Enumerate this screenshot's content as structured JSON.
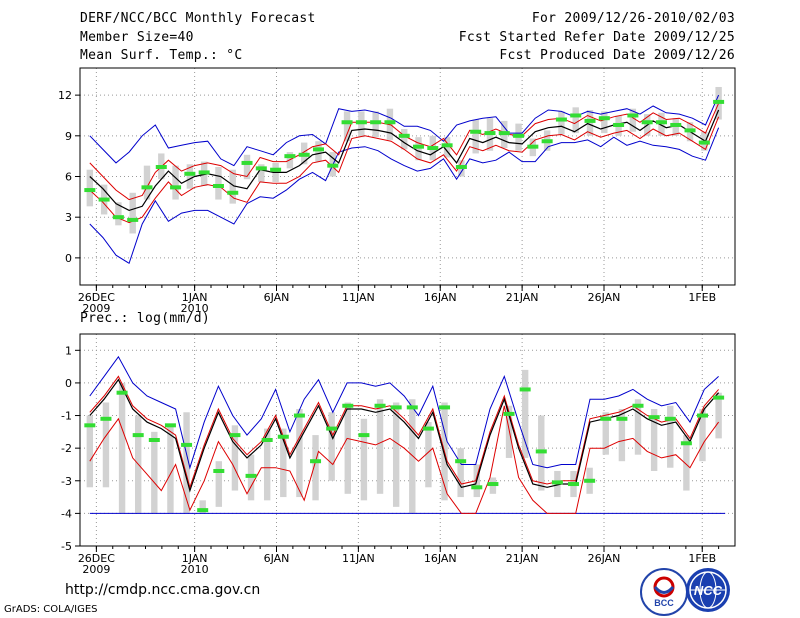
{
  "header": {
    "title": "DERF/NCC/BCC Monthly Forecast",
    "member_size": "Member Size=40",
    "variable": "Mean Surf. Temp.: °C",
    "period": "For 2009/12/26-2010/02/03",
    "fcst_started": "Fcst Started Refer Date 2009/12/25",
    "fcst_produced": "Fcst Produced Date 2009/12/26"
  },
  "footer": {
    "url": "http://cmdp.ncc.cma.gov.cn",
    "credit": "GrADS: COLA/IGES",
    "logo_bcc": "BCC",
    "logo_ncc": "NCC"
  },
  "colors": {
    "ensemble_mean": "#000000",
    "uncertainty_inner": "#dd0000",
    "uncertainty_outer": "#0000cc",
    "member_box": "#d2d2d2",
    "observation": "#33dd33",
    "grid": "#999999"
  },
  "chart_data": [
    {
      "type": "line",
      "title": "Mean Surf. Temp.: °C",
      "ylim": [
        -2,
        14
      ],
      "yticks": [
        0,
        3,
        6,
        9,
        12
      ],
      "xlim": [
        0,
        40
      ],
      "xtick_positions": [
        1,
        7,
        13,
        19,
        25,
        31,
        37
      ],
      "xtick_labels": [
        "26DEC",
        "1JAN",
        "6JAN",
        "11JAN",
        "16JAN",
        "21JAN",
        "26JAN",
        "1FEB"
      ],
      "xtick_sublabels": [
        "2009",
        "2010",
        "",
        "",
        "",
        "",
        "",
        ""
      ],
      "day_of_ticks": [
        0,
        6,
        11,
        16,
        21,
        26,
        31,
        37
      ],
      "series": [
        {
          "name": "ensemble mean",
          "values": [
            6.0,
            5.1,
            4.0,
            3.5,
            3.8,
            5.3,
            6.4,
            5.5,
            6.0,
            6.2,
            6.0,
            5.3,
            5.1,
            6.5,
            6.3,
            6.3,
            6.8,
            7.6,
            7.8,
            7.0,
            9.4,
            9.5,
            9.4,
            9.2,
            8.5,
            7.9,
            7.6,
            8.2,
            7.0,
            8.8,
            8.5,
            8.9,
            8.5,
            8.4,
            9.3,
            9.6,
            9.7,
            9.3,
            9.9,
            9.5,
            9.8,
            10.0,
            9.4,
            10.1,
            9.6,
            9.8,
            9.2,
            8.6,
            10.9
          ]
        },
        {
          "name": "upper inner",
          "values": [
            7.0,
            6.0,
            5.0,
            4.3,
            4.6,
            6.3,
            7.2,
            6.4,
            6.8,
            7.0,
            6.8,
            6.2,
            6.0,
            7.4,
            7.1,
            7.1,
            7.6,
            8.2,
            8.4,
            7.6,
            10.0,
            10.0,
            10.0,
            9.8,
            9.0,
            8.5,
            8.2,
            8.8,
            7.6,
            9.4,
            9.1,
            9.5,
            9.1,
            9.0,
            9.9,
            10.2,
            10.3,
            9.9,
            10.5,
            10.1,
            10.4,
            10.6,
            10.0,
            10.7,
            10.2,
            10.3,
            9.8,
            9.2,
            11.4
          ]
        },
        {
          "name": "lower inner",
          "values": [
            5.0,
            4.1,
            3.0,
            2.6,
            3.0,
            4.4,
            5.6,
            4.6,
            5.2,
            5.4,
            5.2,
            4.4,
            4.1,
            5.6,
            5.5,
            5.5,
            6.0,
            7.0,
            7.2,
            6.3,
            8.8,
            9.0,
            8.8,
            8.6,
            8.0,
            7.3,
            7.0,
            7.6,
            6.4,
            8.2,
            7.9,
            8.3,
            7.9,
            7.8,
            8.7,
            9.0,
            9.1,
            8.7,
            9.3,
            8.9,
            9.2,
            9.4,
            8.8,
            9.5,
            9.0,
            9.2,
            8.6,
            8.0,
            10.4
          ]
        },
        {
          "name": "upper outer",
          "values": [
            9.0,
            8.0,
            7.0,
            7.8,
            9.0,
            9.8,
            8.1,
            8.3,
            8.5,
            8.6,
            7.3,
            6.8,
            8.2,
            7.9,
            7.6,
            8.5,
            9.0,
            9.1,
            8.4,
            11.0,
            10.8,
            10.9,
            10.7,
            10.3,
            9.7,
            9.7,
            9.4,
            8.6,
            9.8,
            10.1,
            10.3,
            10.4,
            9.2,
            9.2,
            10.3,
            10.9,
            10.8,
            10.4,
            10.8,
            10.6,
            10.8,
            11.0,
            10.6,
            11.2,
            10.7,
            10.6,
            10.3,
            9.8,
            12.0
          ]
        },
        {
          "name": "lower outer",
          "values": [
            2.5,
            1.5,
            0.2,
            -0.4,
            2.5,
            4.2,
            2.7,
            3.3,
            3.5,
            3.5,
            3.0,
            2.5,
            4.0,
            4.5,
            4.4,
            5.0,
            5.8,
            6.3,
            5.7,
            7.8,
            8.1,
            8.2,
            7.9,
            7.3,
            6.8,
            6.4,
            6.6,
            7.3,
            5.8,
            7.3,
            7.0,
            7.2,
            7.8,
            7.1,
            7.1,
            8.2,
            8.5,
            8.5,
            8.7,
            8.2,
            8.9,
            8.3,
            8.6,
            8.3,
            8.2,
            8.0,
            7.5,
            7.2,
            9.6
          ]
        },
        {
          "name": "observation",
          "values": [
            5.0,
            4.3,
            3.0,
            2.8,
            5.2,
            6.7,
            5.2,
            6.2,
            6.3,
            5.3,
            4.8,
            7.0,
            6.6,
            6.5,
            7.5,
            7.6,
            8.0,
            6.8,
            10.0,
            10.0,
            10.0,
            10.0,
            9.0,
            8.2,
            8.1,
            8.3,
            6.7,
            9.3,
            9.2,
            9.2,
            9.0,
            8.2,
            8.6,
            10.2,
            10.5,
            10.1,
            10.3,
            9.8,
            10.5,
            10.0,
            10.0,
            9.8,
            9.4,
            8.5,
            11.5
          ]
        },
        {
          "name": "member box top",
          "values": [
            6.5,
            5.4,
            4.1,
            4.8,
            6.8,
            7.7,
            6.8,
            6.9,
            7.1,
            6.7,
            6.5,
            7.6,
            6.9,
            7.0,
            7.8,
            8.5,
            8.6,
            7.8,
            10.8,
            10.8,
            10.8,
            11.0,
            9.5,
            8.9,
            9.0,
            8.9,
            7.2,
            10.2,
            10.3,
            10.1,
            9.9,
            8.8,
            9.4,
            10.8,
            11.1,
            10.9,
            10.8,
            10.5,
            11.0,
            10.6,
            10.7,
            10.3,
            10.0,
            9.3,
            12.6
          ]
        },
        {
          "name": "member box bottom",
          "values": [
            3.8,
            3.2,
            2.4,
            1.8,
            4.3,
            5.8,
            4.3,
            5.1,
            5.3,
            4.3,
            4.0,
            5.8,
            5.6,
            5.6,
            6.6,
            6.9,
            7.1,
            6.0,
            8.6,
            8.9,
            8.9,
            8.7,
            8.0,
            7.2,
            7.2,
            7.4,
            6.0,
            7.7,
            7.9,
            8.1,
            7.9,
            7.5,
            7.9,
            9.1,
            9.2,
            9.0,
            9.2,
            9.0,
            9.3,
            9.0,
            9.0,
            9.0,
            8.6,
            7.9,
            10.2
          ]
        }
      ]
    },
    {
      "type": "line",
      "title": "Prec.: log(mm/d)",
      "ylim": [
        -5,
        1.5
      ],
      "yticks": [
        -5,
        -4,
        -3,
        -2,
        -1,
        0,
        1
      ],
      "xlim": [
        0,
        40
      ],
      "xtick_labels": [
        "26DEC",
        "1JAN",
        "6JAN",
        "11JAN",
        "16JAN",
        "21JAN",
        "26JAN",
        "1FEB"
      ],
      "xtick_sublabels": [
        "2009",
        "2010",
        "",
        "",
        "",
        "",
        "",
        ""
      ],
      "day_of_ticks": [
        0,
        6,
        11,
        16,
        21,
        26,
        31,
        37
      ],
      "baseline": -4,
      "series": [
        {
          "name": "ensemble mean",
          "values": [
            -1.0,
            -0.5,
            0.1,
            -0.8,
            -1.2,
            -1.4,
            -1.7,
            -3.3,
            -2.0,
            -0.9,
            -1.8,
            -2.3,
            -1.9,
            -1.1,
            -2.3,
            -1.5,
            -0.7,
            -1.7,
            -0.8,
            -0.8,
            -0.9,
            -0.8,
            -1.2,
            -1.7,
            -0.9,
            -2.5,
            -3.2,
            -3.1,
            -1.6,
            -0.5,
            -2.0,
            -3.1,
            -3.2,
            -3.1,
            -3.1,
            -1.2,
            -1.1,
            -1.0,
            -0.8,
            -1.1,
            -1.3,
            -1.2,
            -1.8,
            -0.8,
            -0.3
          ]
        },
        {
          "name": "upper inner",
          "values": [
            -0.9,
            -0.4,
            0.2,
            -0.7,
            -1.1,
            -1.3,
            -1.6,
            -3.2,
            -1.9,
            -0.8,
            -1.7,
            -2.2,
            -1.8,
            -1.0,
            -2.2,
            -1.4,
            -0.6,
            -1.6,
            -0.7,
            -0.7,
            -0.8,
            -0.7,
            -1.1,
            -1.6,
            -0.8,
            -2.4,
            -3.1,
            -3.0,
            -1.5,
            -0.4,
            -1.9,
            -3.0,
            -3.1,
            -3.0,
            -3.0,
            -1.1,
            -1.0,
            -0.9,
            -0.7,
            -1.0,
            -1.2,
            -1.1,
            -1.7,
            -0.7,
            -0.2
          ]
        },
        {
          "name": "lower inner",
          "values": [
            -2.4,
            -1.7,
            -1.1,
            -2.3,
            -2.8,
            -3.3,
            -2.5,
            -3.9,
            -3.0,
            -1.8,
            -2.5,
            -3.4,
            -2.6,
            -2.6,
            -2.7,
            -3.6,
            -2.1,
            -2.5,
            -1.7,
            -1.8,
            -1.9,
            -1.7,
            -2.0,
            -2.4,
            -2.0,
            -3.4,
            -4.0,
            -4.0,
            -2.9,
            -0.7,
            -2.9,
            -3.6,
            -4.0,
            -4.0,
            -4.0,
            -2.0,
            -2.0,
            -1.8,
            -1.7,
            -2.1,
            -2.3,
            -2.2,
            -2.6,
            -1.8,
            -1.2
          ]
        },
        {
          "name": "upper outer",
          "values": [
            -0.4,
            0.2,
            0.8,
            0.0,
            -0.4,
            -0.6,
            -0.8,
            -2.6,
            -1.2,
            -0.1,
            -1.0,
            -1.6,
            -1.1,
            -0.2,
            -1.5,
            -0.5,
            0.1,
            -0.9,
            0.0,
            0.0,
            -0.1,
            0.0,
            -0.4,
            -1.0,
            -0.1,
            -1.8,
            -2.5,
            -2.5,
            -0.8,
            0.2,
            -1.2,
            -2.5,
            -2.6,
            -2.5,
            -2.5,
            -0.5,
            -0.5,
            -0.4,
            -0.2,
            -0.5,
            -0.7,
            -0.6,
            -1.2,
            -0.2,
            0.2
          ]
        },
        {
          "name": "observation",
          "values": [
            -1.3,
            -1.1,
            -0.3,
            -1.6,
            -1.75,
            -1.3,
            -1.9,
            -3.9,
            -2.7,
            -1.6,
            -2.85,
            -1.75,
            -1.65,
            -1.0,
            -2.4,
            -1.4,
            -0.7,
            -1.6,
            -0.7,
            -0.75,
            -0.75,
            -1.4,
            -0.75,
            -2.4,
            -3.2,
            -3.1,
            -0.95,
            -0.2,
            -2.1,
            -3.05,
            -3.1,
            -3.0,
            -1.1,
            -1.1,
            -0.7,
            -1.05,
            -1.1,
            -1.85,
            -1.0,
            -0.45
          ]
        },
        {
          "name": "member box top",
          "values": [
            -1.0,
            -0.6,
            0.0,
            -1.0,
            -1.5,
            -1.3,
            -0.9,
            -3.6,
            -2.4,
            -1.3,
            -2.2,
            -1.4,
            -1.4,
            -0.8,
            -1.6,
            -0.9,
            -0.6,
            -1.1,
            -0.5,
            -0.6,
            -0.5,
            -1.2,
            -0.6,
            -2.0,
            -2.5,
            -2.9,
            -0.7,
            0.4,
            -1.0,
            -2.7,
            -2.7,
            -2.6,
            -0.9,
            -0.8,
            -0.5,
            -0.8,
            -0.7,
            -1.6,
            -0.8,
            -0.3
          ]
        },
        {
          "name": "member box bottom",
          "values": [
            -3.2,
            -3.2,
            -4.0,
            -4.0,
            -4.0,
            -4.0,
            -4.0,
            -4.0,
            -3.8,
            -3.3,
            -3.6,
            -3.6,
            -3.5,
            -3.5,
            -3.6,
            -3.0,
            -3.4,
            -3.6,
            -3.4,
            -3.8,
            -4.0,
            -3.2,
            -3.6,
            -3.5,
            -3.5,
            -3.4,
            -2.3,
            -2.3,
            -3.3,
            -3.5,
            -3.5,
            -3.4,
            -2.2,
            -2.4,
            -2.2,
            -2.7,
            -2.6,
            -3.3,
            -2.4,
            -1.7
          ]
        }
      ]
    }
  ]
}
